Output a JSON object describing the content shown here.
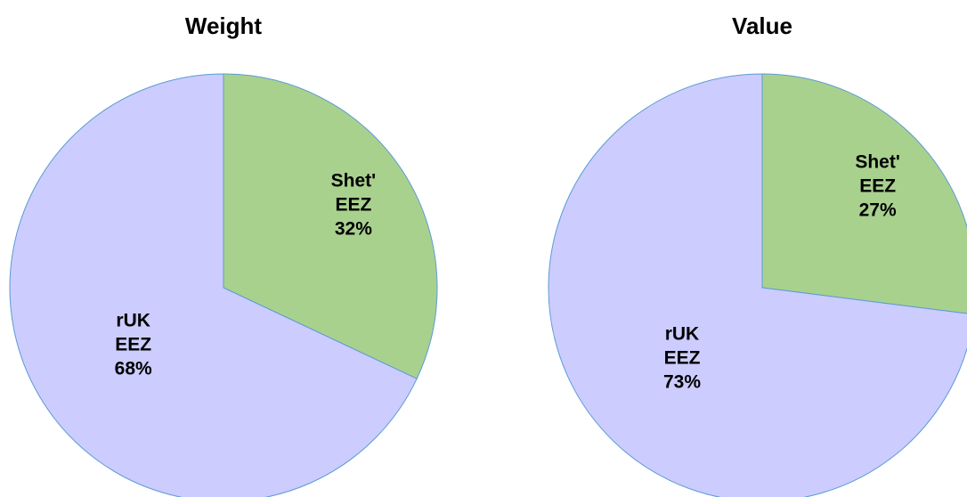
{
  "chart_data": [
    {
      "type": "pie",
      "title": "Weight",
      "categories": [
        "Shet' EEZ",
        "rUK EEZ"
      ],
      "values": [
        32,
        68
      ],
      "value_labels": [
        "32%",
        "68%"
      ],
      "colors": [
        "#a9d18e",
        "#ccccff"
      ]
    },
    {
      "type": "pie",
      "title": "Value",
      "categories": [
        "Shet' EEZ",
        "rUK EEZ"
      ],
      "values": [
        27,
        73
      ],
      "value_labels": [
        "27%",
        "73%"
      ],
      "colors": [
        "#a9d18e",
        "#ccccff"
      ]
    }
  ]
}
